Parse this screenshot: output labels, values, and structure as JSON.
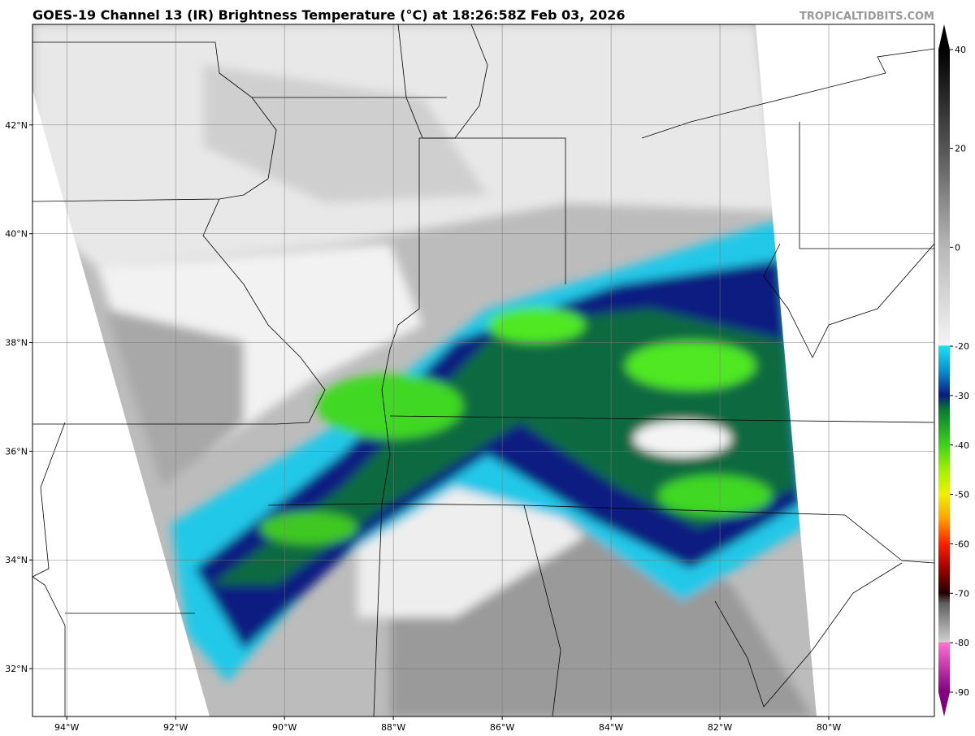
{
  "title": "GOES-19 Channel 13 (IR) Brightness Temperature (°C) at 18:26:58Z Feb 03, 2026",
  "credit": "TROPICALTIDBITS.COM",
  "map": {
    "lonlim": [
      -94.63,
      -78.06
    ],
    "latlim": [
      31.12,
      43.85
    ],
    "lon_ticks": [
      {
        "value": -94,
        "label": "94°W"
      },
      {
        "value": -92,
        "label": "92°W"
      },
      {
        "value": -90,
        "label": "90°W"
      },
      {
        "value": -88,
        "label": "88°W"
      },
      {
        "value": -86,
        "label": "86°W"
      },
      {
        "value": -84,
        "label": "84°W"
      },
      {
        "value": -82,
        "label": "82°W"
      },
      {
        "value": -80,
        "label": "80°W"
      }
    ],
    "lat_ticks": [
      {
        "value": 42,
        "label": "42°N"
      },
      {
        "value": 40,
        "label": "40°N"
      },
      {
        "value": 38,
        "label": "38°N"
      },
      {
        "value": 36,
        "label": "36°N"
      },
      {
        "value": 34,
        "label": "34°N"
      },
      {
        "value": 32,
        "label": "32°N"
      }
    ]
  },
  "colorbar": {
    "lim": [
      -90,
      40
    ],
    "ticks": [
      40,
      20,
      0,
      -20,
      -30,
      -40,
      -50,
      -60,
      -70,
      -80,
      -90
    ]
  }
}
